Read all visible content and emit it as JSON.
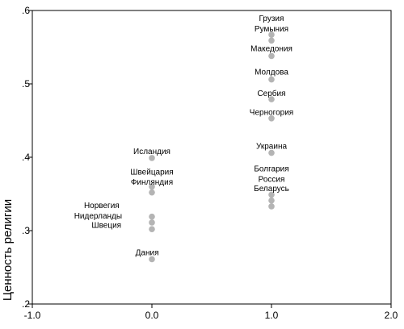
{
  "chart_data": {
    "type": "scatter",
    "title": "",
    "xlabel": "",
    "ylabel": "Ценность религии",
    "xlim": [
      -1.0,
      2.0
    ],
    "ylim": [
      0.2,
      0.6
    ],
    "xticks": [
      -1.0,
      0.0,
      1.0,
      2.0
    ],
    "xtick_labels": [
      "-1.0",
      "0.0",
      "1.0",
      "2.0"
    ],
    "yticks": [
      0.2,
      0.3,
      0.4,
      0.5,
      0.6
    ],
    "ytick_labels": [
      ".2",
      ".3",
      ".4",
      ".5",
      ".6"
    ],
    "grid": false,
    "point_color": "#b4b4b4",
    "points": [
      {
        "x": 1.0,
        "y": 0.567
      },
      {
        "x": 1.0,
        "y": 0.559
      },
      {
        "x": 1.0,
        "y": 0.538
      },
      {
        "x": 1.0,
        "y": 0.506
      },
      {
        "x": 1.0,
        "y": 0.479
      },
      {
        "x": 1.0,
        "y": 0.453
      },
      {
        "x": 1.0,
        "y": 0.406
      },
      {
        "x": 1.0,
        "y": 0.349
      },
      {
        "x": 1.0,
        "y": 0.341
      },
      {
        "x": 1.0,
        "y": 0.333
      },
      {
        "x": 0.0,
        "y": 0.399
      },
      {
        "x": 0.0,
        "y": 0.36
      },
      {
        "x": 0.0,
        "y": 0.352
      },
      {
        "x": 0.0,
        "y": 0.319
      },
      {
        "x": 0.0,
        "y": 0.311
      },
      {
        "x": 0.0,
        "y": 0.302
      },
      {
        "x": 0.0,
        "y": 0.261
      }
    ],
    "annotations": [
      {
        "text": "Грузия",
        "x": 1.0,
        "y": 0.59
      },
      {
        "text": "Румыния",
        "x": 1.0,
        "y": 0.576
      },
      {
        "text": "Македония",
        "x": 1.0,
        "y": 0.549
      },
      {
        "text": "Молдова",
        "x": 1.0,
        "y": 0.517
      },
      {
        "text": "Сербия",
        "x": 1.0,
        "y": 0.488
      },
      {
        "text": "Черногория",
        "x": 1.0,
        "y": 0.462
      },
      {
        "text": "Украина",
        "x": 1.0,
        "y": 0.416
      },
      {
        "text": "Болгария",
        "x": 1.0,
        "y": 0.385
      },
      {
        "text": "Россия",
        "x": 1.0,
        "y": 0.371
      },
      {
        "text": "Беларусь",
        "x": 1.0,
        "y": 0.358
      },
      {
        "text": "Исландия",
        "x": 0.0,
        "y": 0.409
      },
      {
        "text": "Швейцария",
        "x": 0.0,
        "y": 0.381
      },
      {
        "text": "Финляндия",
        "x": 0.0,
        "y": 0.367
      },
      {
        "text": "Норвегия",
        "x": -0.42,
        "y": 0.335
      },
      {
        "text": "Нидерланды",
        "x": -0.45,
        "y": 0.321
      },
      {
        "text": "Швеция",
        "x": -0.38,
        "y": 0.308
      },
      {
        "text": "Дания",
        "x": -0.04,
        "y": 0.271
      }
    ]
  }
}
